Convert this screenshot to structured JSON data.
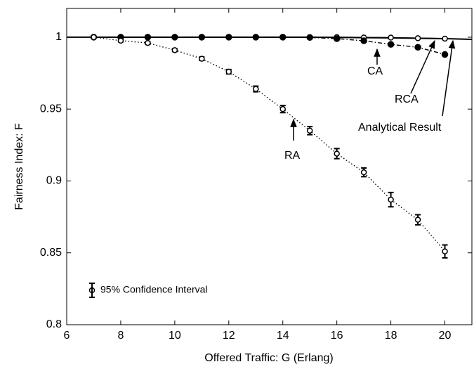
{
  "chart_data": {
    "type": "line",
    "xlabel": "Offered Traffic: G (Erlang)",
    "ylabel": "Fairness Index: F",
    "xlim": [
      6,
      21
    ],
    "ylim": [
      0.8,
      1.02
    ],
    "xticks": [
      6,
      8,
      10,
      12,
      14,
      16,
      18,
      20
    ],
    "yticks": [
      0.8,
      0.85,
      0.9,
      0.95,
      1
    ],
    "error_bar_label": "95% Confidence Interval",
    "series": [
      {
        "name": "Analytical Result",
        "color": "#000000",
        "marker": "none",
        "line_style": "solid",
        "x": [
          6,
          15,
          18,
          20,
          21
        ],
        "values": [
          1,
          1,
          0.9995,
          0.999,
          0.9985
        ]
      },
      {
        "name": "RCA",
        "color": "#000000",
        "marker": "open",
        "line_style": "solid",
        "x": [
          7,
          8,
          9,
          10,
          11,
          12,
          13,
          14,
          15,
          16,
          17,
          18,
          19,
          20
        ],
        "values": [
          1,
          1,
          1,
          1,
          1,
          1,
          1,
          1,
          1,
          1,
          0.9998,
          0.9997,
          0.9993,
          0.999
        ]
      },
      {
        "name": "CA",
        "color": "#000000",
        "marker": "filled",
        "line_style": "dashdot",
        "x": [
          7,
          8,
          9,
          10,
          11,
          12,
          13,
          14,
          15,
          16,
          17,
          18,
          19,
          20
        ],
        "values": [
          1,
          1,
          1,
          1,
          1,
          1,
          1,
          1,
          0.9998,
          0.999,
          0.9975,
          0.995,
          0.993,
          0.988
        ]
      },
      {
        "name": "RA",
        "color": "#000000",
        "marker": "open",
        "line_style": "dotted",
        "x": [
          7,
          8,
          9,
          10,
          11,
          12,
          13,
          14,
          15,
          16,
          17,
          18,
          19,
          20
        ],
        "values": [
          1,
          0.9976,
          0.996,
          0.991,
          0.985,
          0.976,
          0.964,
          0.95,
          0.935,
          0.919,
          0.906,
          0.887,
          0.873,
          0.851
        ],
        "errors": [
          0.0005,
          0.0008,
          0.001,
          0.001,
          0.0012,
          0.0015,
          0.002,
          0.0025,
          0.0028,
          0.0035,
          0.003,
          0.005,
          0.0035,
          0.0045
        ]
      }
    ]
  }
}
